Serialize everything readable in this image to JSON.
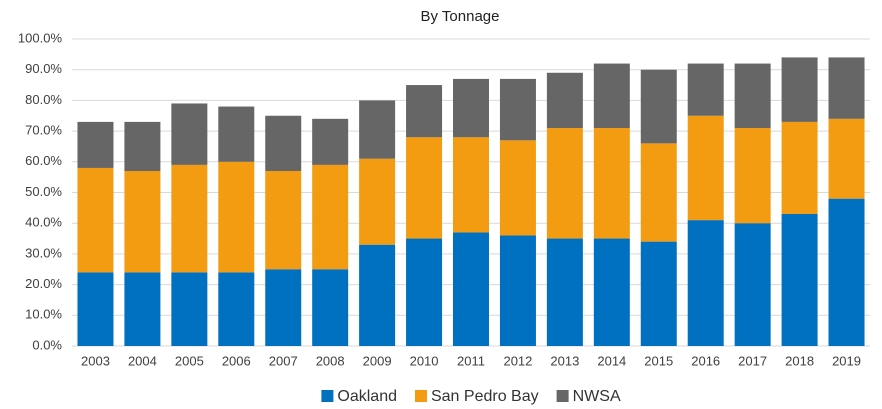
{
  "chart_data": {
    "type": "stacked_bar",
    "title": "By Tonnage",
    "categories": [
      "2003",
      "2004",
      "2005",
      "2006",
      "2007",
      "2008",
      "2009",
      "2010",
      "2011",
      "2012",
      "2013",
      "2014",
      "2015",
      "2016",
      "2017",
      "2018",
      "2019"
    ],
    "series": [
      {
        "name": "Oakland",
        "color": "#0070c0",
        "values": [
          24,
          24,
          24,
          24,
          25,
          25,
          33,
          35,
          37,
          36,
          35,
          35,
          34,
          41,
          40,
          43,
          48
        ]
      },
      {
        "name": "San Pedro Bay",
        "color": "#f39c12",
        "values": [
          34,
          33,
          35,
          36,
          32,
          34,
          28,
          33,
          31,
          31,
          36,
          36,
          32,
          34,
          31,
          30,
          26
        ]
      },
      {
        "name": "NWSA",
        "color": "#666666",
        "values": [
          15,
          16,
          20,
          18,
          18,
          15,
          19,
          17,
          19,
          20,
          18,
          21,
          24,
          17,
          21,
          21,
          20
        ]
      }
    ],
    "ylim": [
      0,
      100
    ],
    "yticks": [
      {
        "value": 0,
        "label": "0.0%"
      },
      {
        "value": 10,
        "label": "10.0%"
      },
      {
        "value": 20,
        "label": "20.0%"
      },
      {
        "value": 30,
        "label": "30.0%"
      },
      {
        "value": 40,
        "label": "40.0%"
      },
      {
        "value": 50,
        "label": "50.0%"
      },
      {
        "value": 60,
        "label": "60.0%"
      },
      {
        "value": 70,
        "label": "70.0%"
      },
      {
        "value": 80,
        "label": "80.0%"
      },
      {
        "value": 90,
        "label": "90.0%"
      },
      {
        "value": 100,
        "label": "100.0%"
      }
    ],
    "grid": true,
    "legend": "bottom"
  }
}
